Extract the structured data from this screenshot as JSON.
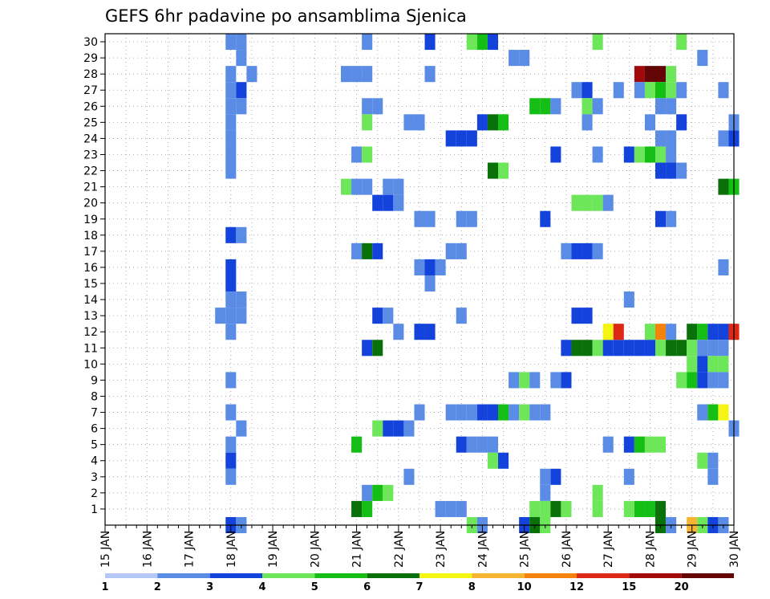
{
  "chart_data": {
    "type": "heatmap",
    "title": "GEFS 6hr padavine po ansamblima Sjenica",
    "xlabel": "",
    "ylabel": "",
    "x_tick_labels": [
      "15 JAN",
      "16 JAN",
      "17 JAN",
      "18 JAN",
      "19 JAN",
      "20 JAN",
      "21 JAN",
      "22 JAN",
      "23 JAN",
      "24 JAN",
      "25 JAN",
      "26 JAN",
      "27 JAN",
      "28 JAN",
      "29 JAN",
      "30 JAN"
    ],
    "x_range_days": [
      15,
      30
    ],
    "y_tick_labels": [
      "1",
      "2",
      "3",
      "4",
      "5",
      "6",
      "7",
      "8",
      "9",
      "10",
      "11",
      "12",
      "13",
      "14",
      "15",
      "16",
      "17",
      "18",
      "19",
      "20",
      "21",
      "22",
      "23",
      "24",
      "25",
      "26",
      "27",
      "28",
      "29",
      "30"
    ],
    "y_range": [
      0,
      30
    ],
    "grid": true,
    "time_step_hours": 6,
    "color_scale": {
      "boundaries": [
        "1",
        "2",
        "3",
        "4",
        "5",
        "6",
        "7",
        "8",
        "10",
        "12",
        "15",
        "20"
      ],
      "colors": [
        "#b4c8f5",
        "#5a8ce6",
        "#1443dc",
        "#6ee65a",
        "#14be14",
        "#0a700a",
        "#f5f514",
        "#f5b432",
        "#f5820a",
        "#dc2814",
        "#a00a0a",
        "#640505"
      ]
    },
    "cells": [
      [
        18.0,
        30,
        1
      ],
      [
        18.25,
        30,
        1
      ],
      [
        18.25,
        29,
        1
      ],
      [
        18.0,
        28,
        1
      ],
      [
        18.5,
        28,
        1
      ],
      [
        18.0,
        27,
        1
      ],
      [
        18.25,
        27,
        2
      ],
      [
        18.0,
        26,
        1
      ],
      [
        18.25,
        26,
        1
      ],
      [
        18.0,
        25,
        1
      ],
      [
        18.0,
        24,
        1
      ],
      [
        18.0,
        23,
        1
      ],
      [
        18.0,
        22,
        1
      ],
      [
        18.0,
        18,
        2
      ],
      [
        18.25,
        18,
        1
      ],
      [
        18.0,
        16,
        2
      ],
      [
        18.0,
        15,
        2
      ],
      [
        18.0,
        14,
        1
      ],
      [
        18.25,
        14,
        1
      ],
      [
        17.75,
        13,
        1
      ],
      [
        18.0,
        13,
        1
      ],
      [
        18.25,
        13,
        1
      ],
      [
        18.0,
        12,
        1
      ],
      [
        18.0,
        9,
        1
      ],
      [
        18.0,
        7,
        1
      ],
      [
        18.25,
        6,
        1
      ],
      [
        18.0,
        5,
        1
      ],
      [
        18.0,
        4,
        2
      ],
      [
        18.0,
        3,
        1
      ],
      [
        18.0,
        0,
        2
      ],
      [
        18.25,
        0,
        1
      ],
      [
        21.25,
        30,
        1
      ],
      [
        20.75,
        28,
        1
      ],
      [
        21.0,
        28,
        1
      ],
      [
        21.25,
        28,
        1
      ],
      [
        21.25,
        26,
        1
      ],
      [
        21.5,
        26,
        1
      ],
      [
        21.25,
        25,
        3
      ],
      [
        21.0,
        23,
        1
      ],
      [
        21.25,
        23,
        3
      ],
      [
        20.75,
        21,
        3
      ],
      [
        21.0,
        21,
        1
      ],
      [
        21.25,
        21,
        1
      ],
      [
        21.75,
        21,
        1
      ],
      [
        22.0,
        21,
        1
      ],
      [
        21.5,
        20,
        2
      ],
      [
        21.75,
        20,
        2
      ],
      [
        22.0,
        20,
        1
      ],
      [
        21.0,
        17,
        1
      ],
      [
        21.25,
        17,
        5
      ],
      [
        21.5,
        17,
        2
      ],
      [
        21.5,
        13,
        2
      ],
      [
        21.75,
        13,
        1
      ],
      [
        22.0,
        12,
        1
      ],
      [
        21.25,
        11,
        2
      ],
      [
        21.5,
        11,
        5
      ],
      [
        21.5,
        6,
        3
      ],
      [
        21.75,
        6,
        2
      ],
      [
        22.0,
        6,
        2
      ],
      [
        22.25,
        6,
        1
      ],
      [
        21.0,
        5,
        4
      ],
      [
        21.25,
        2,
        1
      ],
      [
        21.5,
        2,
        4
      ],
      [
        21.75,
        2,
        3
      ],
      [
        21.0,
        1,
        5
      ],
      [
        21.25,
        1,
        4
      ],
      [
        22.75,
        30,
        2
      ],
      [
        22.75,
        28,
        1
      ],
      [
        22.25,
        25,
        1
      ],
      [
        22.5,
        25,
        1
      ],
      [
        22.5,
        19,
        1
      ],
      [
        22.75,
        19,
        1
      ],
      [
        22.5,
        16,
        1
      ],
      [
        22.75,
        16,
        2
      ],
      [
        23.0,
        16,
        1
      ],
      [
        22.75,
        15,
        1
      ],
      [
        22.75,
        12,
        2
      ],
      [
        22.5,
        12,
        2
      ],
      [
        22.5,
        7,
        1
      ],
      [
        22.25,
        3,
        1
      ],
      [
        23.0,
        1,
        1
      ],
      [
        23.25,
        1,
        1
      ],
      [
        23.5,
        1,
        1
      ],
      [
        23.75,
        30,
        3
      ],
      [
        24.0,
        30,
        4
      ],
      [
        24.25,
        30,
        2
      ],
      [
        24.0,
        25,
        2
      ],
      [
        24.25,
        25,
        5
      ],
      [
        24.5,
        25,
        4
      ],
      [
        23.25,
        24,
        2
      ],
      [
        23.5,
        24,
        2
      ],
      [
        23.75,
        24,
        2
      ],
      [
        24.25,
        22,
        5
      ],
      [
        24.5,
        22,
        3
      ],
      [
        23.5,
        19,
        1
      ],
      [
        23.75,
        19,
        1
      ],
      [
        23.25,
        17,
        1
      ],
      [
        23.5,
        17,
        1
      ],
      [
        23.5,
        13,
        1
      ],
      [
        23.25,
        7,
        1
      ],
      [
        23.5,
        7,
        1
      ],
      [
        23.75,
        7,
        1
      ],
      [
        24.0,
        7,
        2
      ],
      [
        24.25,
        7,
        2
      ],
      [
        24.5,
        7,
        4
      ],
      [
        23.5,
        5,
        2
      ],
      [
        23.75,
        5,
        1
      ],
      [
        24.0,
        5,
        1
      ],
      [
        24.25,
        5,
        1
      ],
      [
        24.25,
        4,
        3
      ],
      [
        24.5,
        4,
        2
      ],
      [
        23.75,
        0,
        3
      ],
      [
        24.0,
        0,
        1
      ],
      [
        24.75,
        29,
        1
      ],
      [
        25.0,
        29,
        1
      ],
      [
        25.5,
        26,
        4
      ],
      [
        25.25,
        26,
        4
      ],
      [
        25.75,
        26,
        1
      ],
      [
        25.75,
        23,
        2
      ],
      [
        25.5,
        19,
        2
      ],
      [
        24.75,
        9,
        1
      ],
      [
        25.0,
        9,
        3
      ],
      [
        25.25,
        9,
        1
      ],
      [
        24.75,
        7,
        1
      ],
      [
        25.0,
        7,
        3
      ],
      [
        25.25,
        7,
        1
      ],
      [
        25.5,
        7,
        1
      ],
      [
        25.75,
        3,
        2
      ],
      [
        25.5,
        3,
        1
      ],
      [
        25.5,
        2,
        1
      ],
      [
        25.25,
        1,
        3
      ],
      [
        25.5,
        1,
        3
      ],
      [
        25.75,
        1,
        5
      ],
      [
        26.0,
        1,
        3
      ],
      [
        25.0,
        0,
        2
      ],
      [
        25.25,
        0,
        5
      ],
      [
        25.5,
        0,
        3
      ],
      [
        26.75,
        30,
        3
      ],
      [
        26.25,
        27,
        1
      ],
      [
        26.5,
        27,
        2
      ],
      [
        26.5,
        26,
        3
      ],
      [
        26.75,
        26,
        1
      ],
      [
        26.5,
        25,
        1
      ],
      [
        26.75,
        23,
        1
      ],
      [
        26.25,
        20,
        3
      ],
      [
        26.5,
        20,
        3
      ],
      [
        26.75,
        20,
        3
      ],
      [
        27.0,
        20,
        1
      ],
      [
        26.0,
        17,
        1
      ],
      [
        26.25,
        17,
        2
      ],
      [
        26.5,
        17,
        2
      ],
      [
        26.75,
        17,
        1
      ],
      [
        26.25,
        13,
        2
      ],
      [
        26.5,
        13,
        2
      ],
      [
        26.0,
        11,
        2
      ],
      [
        26.25,
        11,
        5
      ],
      [
        26.5,
        11,
        5
      ],
      [
        26.75,
        11,
        3
      ],
      [
        27.0,
        11,
        2
      ],
      [
        27.25,
        11,
        2
      ],
      [
        27.5,
        11,
        2
      ],
      [
        27.75,
        11,
        2
      ],
      [
        26.0,
        9,
        2
      ],
      [
        25.75,
        9,
        1
      ],
      [
        27.0,
        12,
        6
      ],
      [
        27.25,
        12,
        9
      ],
      [
        26.75,
        2,
        3
      ],
      [
        26.75,
        1,
        3
      ],
      [
        27.0,
        5,
        1
      ],
      [
        27.5,
        5,
        2
      ],
      [
        27.75,
        5,
        4
      ],
      [
        27.5,
        3,
        1
      ],
      [
        27.5,
        1,
        3
      ],
      [
        27.75,
        1,
        4
      ],
      [
        27.75,
        28,
        10
      ],
      [
        28.0,
        28,
        11
      ],
      [
        28.25,
        28,
        11
      ],
      [
        28.5,
        28,
        3
      ],
      [
        27.25,
        27,
        1
      ],
      [
        27.75,
        27,
        1
      ],
      [
        28.0,
        27,
        3
      ],
      [
        28.25,
        27,
        4
      ],
      [
        28.5,
        27,
        3
      ],
      [
        28.75,
        27,
        1
      ],
      [
        28.25,
        26,
        1
      ],
      [
        28.5,
        26,
        1
      ],
      [
        28.0,
        25,
        1
      ],
      [
        28.75,
        25,
        2
      ],
      [
        28.25,
        24,
        1
      ],
      [
        28.5,
        24,
        1
      ],
      [
        27.5,
        23,
        2
      ],
      [
        27.75,
        23,
        3
      ],
      [
        28.0,
        23,
        4
      ],
      [
        28.25,
        23,
        3
      ],
      [
        28.5,
        23,
        1
      ],
      [
        28.25,
        22,
        2
      ],
      [
        28.5,
        22,
        2
      ],
      [
        28.75,
        22,
        1
      ],
      [
        28.25,
        19,
        2
      ],
      [
        28.5,
        19,
        1
      ],
      [
        27.5,
        14,
        1
      ],
      [
        28.0,
        12,
        3
      ],
      [
        28.25,
        12,
        8
      ],
      [
        28.5,
        12,
        1
      ],
      [
        28.0,
        11,
        2
      ],
      [
        28.25,
        11,
        3
      ],
      [
        28.5,
        11,
        5
      ],
      [
        28.75,
        11,
        5
      ],
      [
        28.0,
        5,
        3
      ],
      [
        28.25,
        5,
        3
      ],
      [
        28.25,
        1,
        5
      ],
      [
        28.0,
        1,
        4
      ],
      [
        28.25,
        0,
        5
      ],
      [
        28.5,
        0,
        1
      ],
      [
        28.75,
        30,
        3
      ],
      [
        29.25,
        29,
        1
      ],
      [
        29.75,
        27,
        1
      ],
      [
        29.75,
        24,
        1
      ],
      [
        30.0,
        24,
        2
      ],
      [
        30.0,
        25,
        1
      ],
      [
        29.75,
        21,
        5
      ],
      [
        30.0,
        21,
        4
      ],
      [
        29.75,
        16,
        1
      ],
      [
        29.0,
        12,
        5
      ],
      [
        29.25,
        12,
        4
      ],
      [
        29.5,
        12,
        2
      ],
      [
        29.75,
        12,
        2
      ],
      [
        30.0,
        12,
        9
      ],
      [
        29.0,
        11,
        3
      ],
      [
        29.25,
        11,
        1
      ],
      [
        29.5,
        11,
        1
      ],
      [
        29.75,
        11,
        1
      ],
      [
        29.0,
        10,
        3
      ],
      [
        29.25,
        10,
        2
      ],
      [
        29.5,
        10,
        3
      ],
      [
        29.75,
        10,
        3
      ],
      [
        28.75,
        9,
        3
      ],
      [
        29.0,
        9,
        4
      ],
      [
        29.25,
        9,
        2
      ],
      [
        29.5,
        9,
        1
      ],
      [
        29.75,
        9,
        1
      ],
      [
        29.25,
        7,
        1
      ],
      [
        29.5,
        7,
        4
      ],
      [
        29.75,
        7,
        6
      ],
      [
        30.0,
        6,
        1
      ],
      [
        29.25,
        4,
        3
      ],
      [
        29.5,
        4,
        1
      ],
      [
        29.5,
        3,
        1
      ],
      [
        29.0,
        0,
        7
      ],
      [
        29.25,
        0,
        3
      ],
      [
        29.5,
        0,
        2
      ],
      [
        29.75,
        0,
        1
      ]
    ]
  }
}
